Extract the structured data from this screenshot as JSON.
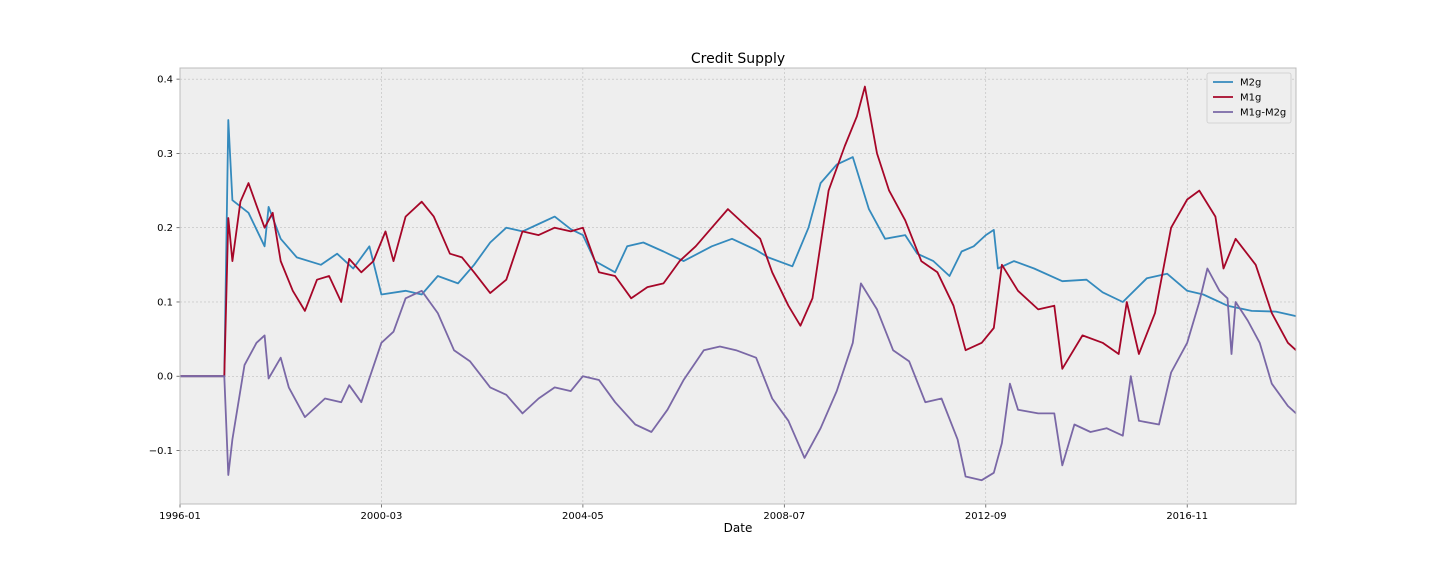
{
  "chart_data": {
    "type": "line",
    "title": "Credit Supply",
    "xlabel": "Date",
    "ylabel": "",
    "xlim": [
      "1996-01",
      "2019-02"
    ],
    "ylim": [
      -0.172,
      0.415
    ],
    "x_ticks": [
      "1996-01",
      "2000-03",
      "2004-05",
      "2008-07",
      "2012-09",
      "2016-11"
    ],
    "y_ticks": [
      -0.1,
      0.0,
      0.1,
      0.2,
      0.3,
      0.4
    ],
    "y_tick_labels": [
      "−0.1",
      "0.0",
      "0.1",
      "0.2",
      "0.3",
      "0.4"
    ],
    "grid": true,
    "legend_position": "top-right",
    "series": [
      {
        "name": "M2g",
        "color": "#348ABD",
        "points": [
          [
            "1996-01",
            0.0
          ],
          [
            "1996-12",
            0.0
          ],
          [
            "1997-01",
            0.345
          ],
          [
            "1997-02",
            0.237
          ],
          [
            "1997-06",
            0.22
          ],
          [
            "1997-10",
            0.175
          ],
          [
            "1997-11",
            0.228
          ],
          [
            "1998-02",
            0.185
          ],
          [
            "1998-06",
            0.16
          ],
          [
            "1998-12",
            0.15
          ],
          [
            "1999-04",
            0.165
          ],
          [
            "1999-08",
            0.145
          ],
          [
            "1999-12",
            0.175
          ],
          [
            "2000-03",
            0.11
          ],
          [
            "2000-09",
            0.115
          ],
          [
            "2001-01",
            0.11
          ],
          [
            "2001-05",
            0.135
          ],
          [
            "2001-10",
            0.125
          ],
          [
            "2002-02",
            0.15
          ],
          [
            "2002-06",
            0.18
          ],
          [
            "2002-10",
            0.2
          ],
          [
            "2003-02",
            0.195
          ],
          [
            "2003-06",
            0.205
          ],
          [
            "2003-10",
            0.215
          ],
          [
            "2004-02",
            0.198
          ],
          [
            "2004-05",
            0.19
          ],
          [
            "2004-08",
            0.155
          ],
          [
            "2005-01",
            0.14
          ],
          [
            "2005-04",
            0.175
          ],
          [
            "2005-08",
            0.18
          ],
          [
            "2006-01",
            0.168
          ],
          [
            "2006-06",
            0.155
          ],
          [
            "2007-01",
            0.175
          ],
          [
            "2007-06",
            0.185
          ],
          [
            "2007-12",
            0.17
          ],
          [
            "2008-03",
            0.16
          ],
          [
            "2008-09",
            0.148
          ],
          [
            "2009-01",
            0.2
          ],
          [
            "2009-04",
            0.26
          ],
          [
            "2009-08",
            0.285
          ],
          [
            "2009-12",
            0.295
          ],
          [
            "2010-04",
            0.225
          ],
          [
            "2010-08",
            0.185
          ],
          [
            "2011-01",
            0.19
          ],
          [
            "2011-04",
            0.165
          ],
          [
            "2011-08",
            0.155
          ],
          [
            "2011-12",
            0.135
          ],
          [
            "2012-03",
            0.168
          ],
          [
            "2012-06",
            0.175
          ],
          [
            "2012-09",
            0.19
          ],
          [
            "2012-11",
            0.197
          ],
          [
            "2012-12",
            0.145
          ],
          [
            "2013-04",
            0.155
          ],
          [
            "2013-09",
            0.145
          ],
          [
            "2014-04",
            0.128
          ],
          [
            "2014-10",
            0.13
          ],
          [
            "2015-02",
            0.113
          ],
          [
            "2015-07",
            0.1
          ],
          [
            "2016-01",
            0.132
          ],
          [
            "2016-06",
            0.138
          ],
          [
            "2016-11",
            0.115
          ],
          [
            "2017-03",
            0.11
          ],
          [
            "2017-09",
            0.095
          ],
          [
            "2018-03",
            0.088
          ],
          [
            "2018-09",
            0.087
          ],
          [
            "2019-02",
            0.081
          ]
        ]
      },
      {
        "name": "M1g",
        "color": "#A60628",
        "points": [
          [
            "1996-01",
            0.0
          ],
          [
            "1996-12",
            0.0
          ],
          [
            "1997-01",
            0.213
          ],
          [
            "1997-02",
            0.155
          ],
          [
            "1997-04",
            0.235
          ],
          [
            "1997-06",
            0.26
          ],
          [
            "1997-08",
            0.23
          ],
          [
            "1997-10",
            0.2
          ],
          [
            "1997-12",
            0.22
          ],
          [
            "1998-02",
            0.155
          ],
          [
            "1998-05",
            0.115
          ],
          [
            "1998-08",
            0.088
          ],
          [
            "1998-11",
            0.13
          ],
          [
            "1999-02",
            0.135
          ],
          [
            "1999-05",
            0.1
          ],
          [
            "1999-07",
            0.158
          ],
          [
            "1999-10",
            0.14
          ],
          [
            "2000-01",
            0.155
          ],
          [
            "2000-04",
            0.195
          ],
          [
            "2000-06",
            0.155
          ],
          [
            "2000-09",
            0.215
          ],
          [
            "2001-01",
            0.235
          ],
          [
            "2001-04",
            0.215
          ],
          [
            "2001-08",
            0.165
          ],
          [
            "2001-11",
            0.16
          ],
          [
            "2002-02",
            0.14
          ],
          [
            "2002-06",
            0.112
          ],
          [
            "2002-10",
            0.13
          ],
          [
            "2003-02",
            0.195
          ],
          [
            "2003-06",
            0.19
          ],
          [
            "2003-10",
            0.2
          ],
          [
            "2004-02",
            0.195
          ],
          [
            "2004-05",
            0.2
          ],
          [
            "2004-09",
            0.14
          ],
          [
            "2005-01",
            0.135
          ],
          [
            "2005-05",
            0.105
          ],
          [
            "2005-09",
            0.12
          ],
          [
            "2006-01",
            0.125
          ],
          [
            "2006-05",
            0.155
          ],
          [
            "2006-09",
            0.175
          ],
          [
            "2007-01",
            0.2
          ],
          [
            "2007-05",
            0.225
          ],
          [
            "2007-09",
            0.205
          ],
          [
            "2008-01",
            0.185
          ],
          [
            "2008-04",
            0.14
          ],
          [
            "2008-08",
            0.095
          ],
          [
            "2008-11",
            0.068
          ],
          [
            "2009-02",
            0.105
          ],
          [
            "2009-06",
            0.25
          ],
          [
            "2009-10",
            0.31
          ],
          [
            "2010-01",
            0.35
          ],
          [
            "2010-03",
            0.39
          ],
          [
            "2010-06",
            0.3
          ],
          [
            "2010-09",
            0.25
          ],
          [
            "2011-01",
            0.21
          ],
          [
            "2011-05",
            0.155
          ],
          [
            "2011-09",
            0.14
          ],
          [
            "2012-01",
            0.095
          ],
          [
            "2012-04",
            0.035
          ],
          [
            "2012-08",
            0.045
          ],
          [
            "2012-11",
            0.065
          ],
          [
            "2013-01",
            0.15
          ],
          [
            "2013-05",
            0.115
          ],
          [
            "2013-10",
            0.09
          ],
          [
            "2014-02",
            0.095
          ],
          [
            "2014-04",
            0.01
          ],
          [
            "2014-09",
            0.055
          ],
          [
            "2015-02",
            0.045
          ],
          [
            "2015-06",
            0.03
          ],
          [
            "2015-08",
            0.1
          ],
          [
            "2015-11",
            0.03
          ],
          [
            "2016-03",
            0.085
          ],
          [
            "2016-07",
            0.2
          ],
          [
            "2016-11",
            0.238
          ],
          [
            "2017-02",
            0.25
          ],
          [
            "2017-06",
            0.215
          ],
          [
            "2017-08",
            0.145
          ],
          [
            "2017-11",
            0.185
          ],
          [
            "2018-04",
            0.15
          ],
          [
            "2018-08",
            0.085
          ],
          [
            "2018-12",
            0.045
          ],
          [
            "2019-02",
            0.035
          ]
        ]
      },
      {
        "name": "M1g-M2g",
        "color": "#7A68A6",
        "points": [
          [
            "1996-01",
            0.0
          ],
          [
            "1996-12",
            0.0
          ],
          [
            "1997-01",
            -0.133
          ],
          [
            "1997-02",
            -0.085
          ],
          [
            "1997-05",
            0.015
          ],
          [
            "1997-08",
            0.045
          ],
          [
            "1997-10",
            0.055
          ],
          [
            "1997-11",
            -0.003
          ],
          [
            "1998-02",
            0.025
          ],
          [
            "1998-04",
            -0.015
          ],
          [
            "1998-08",
            -0.055
          ],
          [
            "1999-01",
            -0.03
          ],
          [
            "1999-05",
            -0.035
          ],
          [
            "1999-07",
            -0.012
          ],
          [
            "1999-10",
            -0.035
          ],
          [
            "2000-03",
            0.045
          ],
          [
            "2000-06",
            0.06
          ],
          [
            "2000-09",
            0.105
          ],
          [
            "2001-01",
            0.115
          ],
          [
            "2001-05",
            0.085
          ],
          [
            "2001-09",
            0.035
          ],
          [
            "2002-01",
            0.02
          ],
          [
            "2002-06",
            -0.015
          ],
          [
            "2002-10",
            -0.025
          ],
          [
            "2003-02",
            -0.05
          ],
          [
            "2003-06",
            -0.03
          ],
          [
            "2003-10",
            -0.015
          ],
          [
            "2004-02",
            -0.02
          ],
          [
            "2004-05",
            0.0
          ],
          [
            "2004-09",
            -0.005
          ],
          [
            "2005-01",
            -0.035
          ],
          [
            "2005-06",
            -0.065
          ],
          [
            "2005-10",
            -0.075
          ],
          [
            "2006-02",
            -0.045
          ],
          [
            "2006-06",
            -0.005
          ],
          [
            "2006-11",
            0.035
          ],
          [
            "2007-03",
            0.04
          ],
          [
            "2007-07",
            0.035
          ],
          [
            "2007-12",
            0.025
          ],
          [
            "2008-04",
            -0.03
          ],
          [
            "2008-08",
            -0.06
          ],
          [
            "2008-12",
            -0.11
          ],
          [
            "2009-04",
            -0.07
          ],
          [
            "2009-08",
            -0.02
          ],
          [
            "2009-12",
            0.045
          ],
          [
            "2010-02",
            0.125
          ],
          [
            "2010-06",
            0.09
          ],
          [
            "2010-10",
            0.035
          ],
          [
            "2011-02",
            0.02
          ],
          [
            "2011-06",
            -0.035
          ],
          [
            "2011-10",
            -0.03
          ],
          [
            "2012-02",
            -0.085
          ],
          [
            "2012-04",
            -0.135
          ],
          [
            "2012-08",
            -0.14
          ],
          [
            "2012-11",
            -0.13
          ],
          [
            "2013-01",
            -0.09
          ],
          [
            "2013-03",
            -0.01
          ],
          [
            "2013-05",
            -0.045
          ],
          [
            "2013-10",
            -0.05
          ],
          [
            "2014-02",
            -0.05
          ],
          [
            "2014-04",
            -0.12
          ],
          [
            "2014-07",
            -0.065
          ],
          [
            "2014-11",
            -0.075
          ],
          [
            "2015-03",
            -0.07
          ],
          [
            "2015-07",
            -0.08
          ],
          [
            "2015-09",
            0.0
          ],
          [
            "2015-11",
            -0.06
          ],
          [
            "2016-04",
            -0.065
          ],
          [
            "2016-07",
            0.005
          ],
          [
            "2016-11",
            0.045
          ],
          [
            "2017-02",
            0.1
          ],
          [
            "2017-04",
            0.145
          ],
          [
            "2017-07",
            0.115
          ],
          [
            "2017-09",
            0.105
          ],
          [
            "2017-10",
            0.03
          ],
          [
            "2017-11",
            0.1
          ],
          [
            "2018-02",
            0.075
          ],
          [
            "2018-05",
            0.045
          ],
          [
            "2018-08",
            -0.01
          ],
          [
            "2018-12",
            -0.04
          ],
          [
            "2019-01",
            -0.045
          ],
          [
            "2019-02",
            -0.05
          ]
        ]
      }
    ]
  }
}
